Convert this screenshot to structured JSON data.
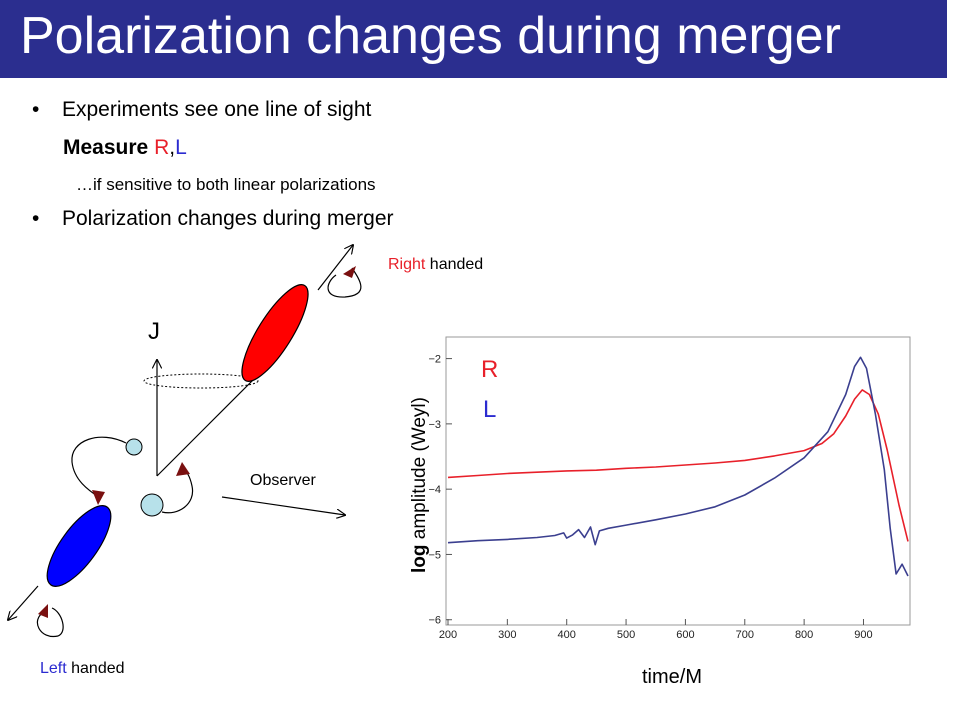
{
  "slide": {
    "title": "Polarization changes during merger",
    "bullets": [
      {
        "dot": "•",
        "text": "Experiments see one line of sight"
      },
      {
        "dot": "•",
        "text": "Polarization changes during merger"
      }
    ],
    "measure": {
      "prefix": "Measure",
      "r": "R",
      "comma": ",",
      "l": "L"
    },
    "note": "…if sensitive to both linear polarizations"
  },
  "diagram": {
    "j_label": "J",
    "observer_label": "Observer",
    "right": {
      "word": "Right",
      "rest": " handed"
    },
    "left": {
      "word": "Left",
      "rest": " handed"
    },
    "colors": {
      "red": "#ff0000",
      "blue": "#0000ff",
      "light_blue": "#b7e1ea",
      "arrowhead": "#7a1010"
    }
  },
  "chart_data": {
    "type": "line",
    "xlabel": "time/M",
    "ylabel_bold": "log",
    "ylabel_rest": " amplitude (Weyl)",
    "xlim": [
      200,
      975
    ],
    "ylim": [
      -6.05,
      -1.7
    ],
    "xticks": [
      200,
      300,
      400,
      500,
      600,
      700,
      800,
      900
    ],
    "yticks": [
      -6,
      -5,
      -4,
      -3,
      -2
    ],
    "ytick_labels": [
      "−6",
      "−5",
      "−4",
      "−3",
      "−2"
    ],
    "legend": [
      {
        "name": "R",
        "color": "#e8202a"
      },
      {
        "name": "L",
        "color": "#2b2bd0"
      }
    ],
    "series": [
      {
        "name": "R",
        "color": "#e8202a",
        "points": [
          [
            200,
            -3.82
          ],
          [
            250,
            -3.79
          ],
          [
            300,
            -3.76
          ],
          [
            350,
            -3.74
          ],
          [
            400,
            -3.72
          ],
          [
            450,
            -3.71
          ],
          [
            500,
            -3.68
          ],
          [
            550,
            -3.66
          ],
          [
            600,
            -3.63
          ],
          [
            650,
            -3.6
          ],
          [
            700,
            -3.56
          ],
          [
            750,
            -3.49
          ],
          [
            800,
            -3.41
          ],
          [
            830,
            -3.3
          ],
          [
            850,
            -3.15
          ],
          [
            870,
            -2.88
          ],
          [
            885,
            -2.62
          ],
          [
            898,
            -2.48
          ],
          [
            910,
            -2.55
          ],
          [
            925,
            -2.85
          ],
          [
            940,
            -3.4
          ],
          [
            960,
            -4.25
          ],
          [
            975,
            -4.8
          ]
        ]
      },
      {
        "name": "L",
        "color": "#3b3f8f",
        "points": [
          [
            200,
            -4.82
          ],
          [
            250,
            -4.79
          ],
          [
            300,
            -4.77
          ],
          [
            350,
            -4.74
          ],
          [
            380,
            -4.71
          ],
          [
            395,
            -4.67
          ],
          [
            400,
            -4.75
          ],
          [
            410,
            -4.7
          ],
          [
            420,
            -4.62
          ],
          [
            430,
            -4.74
          ],
          [
            440,
            -4.58
          ],
          [
            448,
            -4.85
          ],
          [
            455,
            -4.64
          ],
          [
            470,
            -4.6
          ],
          [
            500,
            -4.55
          ],
          [
            550,
            -4.47
          ],
          [
            600,
            -4.38
          ],
          [
            650,
            -4.27
          ],
          [
            700,
            -4.09
          ],
          [
            750,
            -3.83
          ],
          [
            800,
            -3.52
          ],
          [
            840,
            -3.12
          ],
          [
            870,
            -2.55
          ],
          [
            885,
            -2.12
          ],
          [
            895,
            -1.98
          ],
          [
            905,
            -2.15
          ],
          [
            920,
            -2.85
          ],
          [
            935,
            -3.7
          ],
          [
            945,
            -4.6
          ],
          [
            955,
            -5.3
          ],
          [
            965,
            -5.15
          ],
          [
            975,
            -5.33
          ]
        ]
      }
    ]
  }
}
